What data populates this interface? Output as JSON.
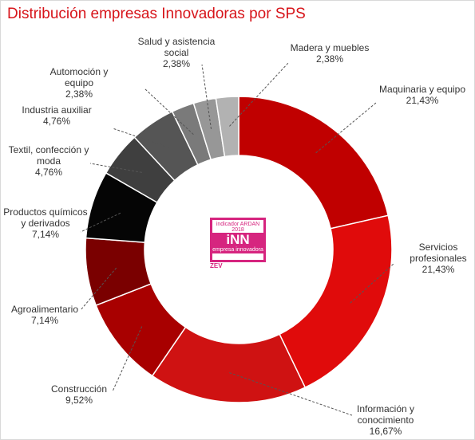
{
  "chart_data": {
    "type": "donut",
    "title": "Distribución empresas Innovadoras por SPS",
    "categories": [
      "Maquinaria y equipo",
      "Servicios profesionales",
      "Información y conocimiento",
      "Construcción",
      "Agroalimentario",
      "Productos químicos y derivados",
      "Textil, confección y moda",
      "Industria auxiliar",
      "Automoción y equipo",
      "Salud y asistencia social",
      "Madera y muebles"
    ],
    "values": [
      21.43,
      21.43,
      16.67,
      9.52,
      7.14,
      7.14,
      4.76,
      4.76,
      2.38,
      2.38,
      2.38
    ],
    "value_labels": [
      "21,43%",
      "21,43%",
      "16,67%",
      "9,52%",
      "7,14%",
      "7,14%",
      "4,76%",
      "4,76%",
      "2,38%",
      "2,38%",
      "2,38%"
    ],
    "colors": [
      "#c00000",
      "#e00b0b",
      "#cf1212",
      "#a80000",
      "#7a0000",
      "#050505",
      "#3f3f3f",
      "#555555",
      "#7a7a7a",
      "#979797",
      "#b2b2b2"
    ]
  },
  "logo": {
    "top": "indicador ARDAN 2018",
    "mark": "iNN",
    "sub": "empresa innovadora",
    "brand": "ZEV"
  }
}
